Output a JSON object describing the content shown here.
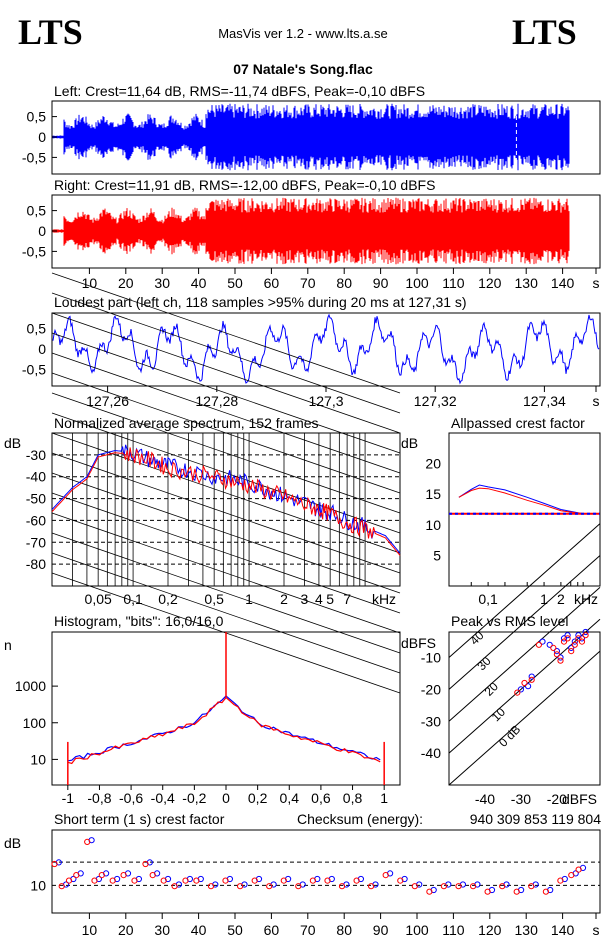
{
  "header": {
    "logo_left": "LTS",
    "logo_right": "LTS",
    "app_title": "MasVis ver 1.2 - www.lts.a.se",
    "file_name": "07 Natale's Song.flac"
  },
  "colors": {
    "left": "#0000ff",
    "right": "#ff0000",
    "grid": "#000000",
    "background": "#ffffff"
  },
  "chart_data": [
    {
      "type": "area",
      "title": "Left: Crest=11,64 dB, RMS=-11,74 dBFS, Peak=-0,10 dBFS",
      "series": [
        {
          "name": "Left",
          "color": "#0000ff"
        }
      ],
      "yticks": [
        "0,5",
        "0",
        "-0,5"
      ],
      "ylim": [
        -1,
        1
      ]
    },
    {
      "type": "area",
      "title": "Right: Crest=11,91 dB, RMS=-12,00 dBFS, Peak=-0,10 dBFS",
      "series": [
        {
          "name": "Right",
          "color": "#ff0000"
        }
      ],
      "yticks": [
        "0,5",
        "0",
        "-0,5"
      ],
      "xticks": [
        "10",
        "20",
        "30",
        "40",
        "50",
        "60",
        "70",
        "80",
        "90",
        "100",
        "110",
        "120",
        "130",
        "140",
        "s"
      ],
      "xlim": [
        0,
        150
      ],
      "ylim": [
        -1,
        1
      ]
    },
    {
      "type": "line",
      "title": "Loudest part (left  ch, 118 samples >95% during 20 ms at 127,31 s)",
      "yticks": [
        "0,5",
        "0",
        "-0,5"
      ],
      "xticks": [
        "127,26",
        "127,28",
        "127,3",
        "127,32",
        "127,34",
        "s"
      ],
      "xlim": [
        127.25,
        127.35
      ],
      "ylim": [
        -1,
        1
      ]
    },
    {
      "type": "line",
      "title": "Normalized average spectrum, 152 frames",
      "ylabel": "dB",
      "yticks": [
        "-30",
        "-40",
        "-50",
        "-60",
        "-70",
        "-80"
      ],
      "xticks": [
        "0,05",
        "0,1",
        "0,2",
        "0,5",
        "1",
        "2",
        "3",
        "4",
        "5",
        "7",
        "kHz"
      ],
      "xlim": [
        0.02,
        20
      ],
      "ylim": [
        -90,
        -20
      ],
      "x": [
        0.02,
        0.03,
        0.04,
        0.05,
        0.07,
        0.1,
        0.15,
        0.2,
        0.3,
        0.5,
        0.7,
        1,
        1.5,
        2,
        3,
        4,
        5,
        7,
        10,
        15,
        20
      ],
      "series": [
        {
          "name": "Left",
          "values": [
            -55,
            -45,
            -40,
            -30,
            -28,
            -29,
            -33,
            -35,
            -37,
            -40,
            -41,
            -43,
            -46,
            -49,
            -52,
            -55,
            -56,
            -60,
            -63,
            -67,
            -75
          ]
        },
        {
          "name": "Right",
          "values": [
            -56,
            -46,
            -41,
            -31,
            -29,
            -30,
            -33,
            -36,
            -38,
            -40,
            -42,
            -44,
            -47,
            -49,
            -53,
            -55,
            -57,
            -61,
            -64,
            -68,
            -76
          ]
        }
      ]
    },
    {
      "type": "line",
      "title": "Allpassed crest factor",
      "ylabel": "dB",
      "yticks": [
        "20",
        "15",
        "10",
        "5"
      ],
      "xticks": [
        "0,1",
        "1",
        "2",
        "kHz"
      ],
      "ylim": [
        0,
        25
      ],
      "x": [
        0.03,
        0.05,
        0.07,
        0.1,
        0.2,
        0.5,
        1,
        2,
        5,
        10
      ],
      "series": [
        {
          "name": "Left",
          "values": [
            14.5,
            15.8,
            16.5,
            16.2,
            15.7,
            14.5,
            13.5,
            12.5,
            11.8,
            11.8
          ]
        },
        {
          "name": "Right",
          "values": [
            14.5,
            15.6,
            16.0,
            15.9,
            15.2,
            14.0,
            13.2,
            12.3,
            11.8,
            11.8
          ]
        }
      ],
      "reference_line": 11.8
    },
    {
      "type": "line",
      "title": "Histogram, \"bits\": 16,0/16,0",
      "ylabel": "n",
      "yticks": [
        "1000",
        "100",
        "10"
      ],
      "xticks": [
        "-1",
        "-0,8",
        "-0,6",
        "-0,4",
        "-0,2",
        "0",
        "0,2",
        "0,4",
        "0,6",
        "0,8",
        "1"
      ],
      "xlim": [
        -1.1,
        1.1
      ],
      "x": [
        -1.0,
        -0.8,
        -0.6,
        -0.4,
        -0.2,
        0,
        0.2,
        0.4,
        0.6,
        0.8,
        1.0
      ],
      "series": [
        {
          "name": "Left",
          "values": [
            9,
            16,
            28,
            50,
            100,
            500,
            100,
            50,
            28,
            16,
            9
          ]
        },
        {
          "name": "Right",
          "values": [
            8,
            15,
            27,
            48,
            95,
            480,
            95,
            48,
            27,
            15,
            8
          ]
        }
      ]
    },
    {
      "type": "scatter",
      "title": "Peak vs RMS level",
      "ylabel": "dBFS",
      "xlabel": "dBFS",
      "yticks": [
        "-10",
        "-20",
        "-30",
        "-40"
      ],
      "xticks": [
        "-40",
        "-30",
        "-20"
      ],
      "diagonal_labels": [
        "40",
        "30",
        "20",
        "10",
        "0 dB"
      ],
      "xlim": [
        -50,
        -8
      ],
      "ylim": [
        -50,
        -2
      ],
      "series": [
        {
          "name": "Left",
          "points": [
            [
              -30,
              -20
            ],
            [
              -28,
              -19
            ],
            [
              -27,
              -16
            ],
            [
              -24,
              -5
            ],
            [
              -22,
              -6
            ],
            [
              -20,
              -8
            ],
            [
              -19,
              -10
            ],
            [
              -18,
              -4
            ],
            [
              -17,
              -3
            ],
            [
              -16,
              -7
            ],
            [
              -15,
              -5
            ],
            [
              -14,
              -3
            ],
            [
              -13,
              -4
            ],
            [
              -12,
              -2
            ]
          ]
        },
        {
          "name": "Right",
          "points": [
            [
              -31,
              -21
            ],
            [
              -29,
              -18
            ],
            [
              -27,
              -17
            ],
            [
              -25,
              -6
            ],
            [
              -21,
              -7
            ],
            [
              -20,
              -9
            ],
            [
              -19,
              -11
            ],
            [
              -18,
              -5
            ],
            [
              -17,
              -4
            ],
            [
              -16,
              -8
            ],
            [
              -15,
              -6
            ],
            [
              -14,
              -4
            ],
            [
              -13,
              -5
            ],
            [
              -12,
              -3
            ]
          ]
        }
      ]
    },
    {
      "type": "scatter",
      "title": "Short term (1 s) crest factor",
      "ylabel": "dB",
      "yticks": [
        "10"
      ],
      "xticks": [
        "10",
        "20",
        "30",
        "40",
        "50",
        "60",
        "70",
        "80",
        "90",
        "100",
        "110",
        "120",
        "130",
        "140",
        "s"
      ],
      "xlim": [
        0,
        150
      ],
      "ylim": [
        5,
        20
      ],
      "x": [
        1,
        3,
        5,
        7,
        10,
        12,
        14,
        17,
        20,
        23,
        26,
        28,
        31,
        34,
        37,
        40,
        44,
        48,
        52,
        56,
        60,
        64,
        68,
        72,
        76,
        80,
        84,
        88,
        92,
        96,
        100,
        104,
        108,
        112,
        116,
        120,
        124,
        128,
        132,
        136,
        140,
        143,
        145
      ],
      "series": [
        {
          "name": "Left",
          "values": [
            14,
            10,
            11,
            12,
            18,
            11,
            12,
            11,
            12,
            11,
            14,
            12,
            11,
            10,
            11,
            11,
            10,
            11,
            10,
            11,
            10,
            11,
            10,
            11,
            11,
            10,
            11,
            10,
            12,
            11,
            10,
            9,
            10,
            10,
            10,
            9,
            10,
            9,
            10,
            9,
            11,
            12,
            13
          ]
        },
        {
          "name": "Right",
          "values": [
            14,
            10,
            11,
            12,
            18,
            11,
            12,
            11,
            12,
            11,
            14,
            12,
            11,
            10,
            11,
            11,
            10,
            11,
            10,
            11,
            10,
            11,
            10,
            11,
            11,
            10,
            11,
            10,
            12,
            11,
            10,
            9,
            10,
            10,
            10,
            9,
            10,
            9,
            10,
            9,
            11,
            12,
            13
          ]
        }
      ],
      "reference_lines": [
        10,
        14.2
      ]
    }
  ],
  "checksum": {
    "label": "Checksum (energy):",
    "value": "940 309 853 119 804"
  }
}
